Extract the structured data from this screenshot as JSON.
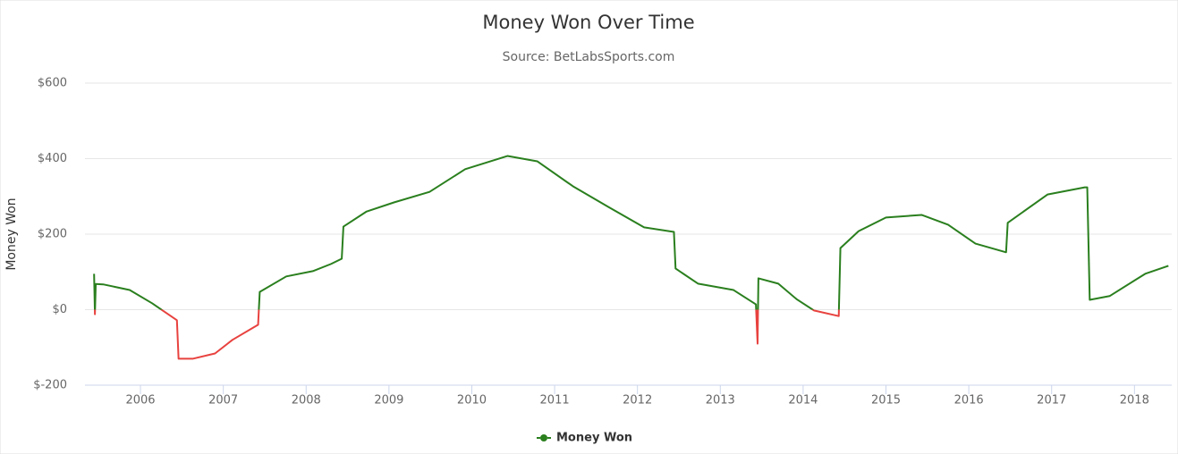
{
  "chart_data": {
    "type": "line",
    "title": "Money Won Over Time",
    "subtitle": "Source: BetLabsSports.com",
    "ylabel": "Money Won",
    "xlim": [
      2005.33,
      2018.45
    ],
    "xticks": [
      2006,
      2007,
      2008,
      2009,
      2010,
      2011,
      2012,
      2013,
      2014,
      2015,
      2016,
      2017,
      2018
    ],
    "ylim": [
      -200,
      600
    ],
    "yticks": [
      {
        "value": -200,
        "label": "$-200"
      },
      {
        "value": 0,
        "label": "$0"
      },
      {
        "value": 200,
        "label": "$200"
      },
      {
        "value": 400,
        "label": "$400"
      },
      {
        "value": 600,
        "label": "$600"
      }
    ],
    "grid": true,
    "legend": "bottom",
    "negative_color": "#e8423f",
    "series": [
      {
        "name": "Money Won",
        "color": "#2a7f1e",
        "x": [
          2005.44,
          2005.45,
          2005.46,
          2005.55,
          2005.87,
          2006.14,
          2006.3,
          2006.44,
          2006.46,
          2006.63,
          2006.9,
          2007.11,
          2007.42,
          2007.44,
          2007.76,
          2008.08,
          2008.3,
          2008.43,
          2008.45,
          2008.73,
          2009.06,
          2009.49,
          2009.92,
          2010.43,
          2010.79,
          2011.22,
          2011.65,
          2012.08,
          2012.44,
          2012.46,
          2012.73,
          2013.16,
          2013.43,
          2013.45,
          2013.46,
          2013.7,
          2013.92,
          2014.13,
          2014.43,
          2014.45,
          2014.67,
          2015.0,
          2015.43,
          2015.75,
          2016.08,
          2016.45,
          2016.47,
          2016.95,
          2017.4,
          2017.43,
          2017.46,
          2017.7,
          2018.13,
          2018.41
        ],
        "values": [
          95,
          -12,
          68,
          67,
          52,
          17,
          -7,
          -28,
          -130,
          -130,
          -116,
          -80,
          -40,
          47,
          88,
          102,
          121,
          135,
          220,
          260,
          284,
          312,
          372,
          407,
          393,
          327,
          272,
          218,
          206,
          109,
          69,
          52,
          14,
          -90,
          83,
          69,
          28,
          -2,
          -17,
          163,
          208,
          244,
          251,
          225,
          175,
          152,
          230,
          305,
          324,
          324,
          26,
          36,
          95,
          116
        ]
      }
    ]
  }
}
